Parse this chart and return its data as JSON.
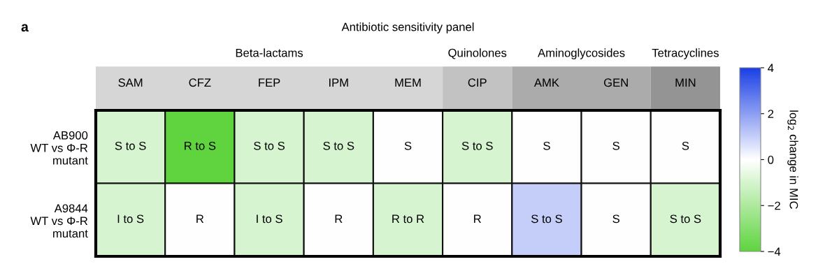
{
  "chart_data": {
    "type": "heatmap",
    "title": "Antibiotic sensitivity panel",
    "categories": [
      "SAM",
      "CFZ",
      "FEP",
      "IPM",
      "MEM",
      "CIP",
      "AMK",
      "GEN",
      "MIN"
    ],
    "y_categories": [
      "AB900\nWT vs Φ-R\nmutant",
      "A9844\nWT vs Φ-R\nmutant"
    ],
    "cells": [
      [
        -1,
        -4,
        -1,
        -1,
        0,
        -1,
        0,
        0,
        0
      ],
      [
        -1,
        0,
        -1,
        0,
        -1,
        0,
        1,
        0,
        -1
      ]
    ],
    "cell_labels": [
      [
        "S to S",
        "R to S",
        "S to S",
        "S to S",
        "S",
        "S to S",
        "S",
        "S",
        "S"
      ],
      [
        "I to S",
        "R",
        "I to S",
        "R",
        "R to R",
        "R",
        "S to S",
        "S",
        "S to S"
      ]
    ],
    "clabel": "log$_{2}$ change in MIC",
    "clim": [
      -4,
      4
    ],
    "cticks": [
      4,
      2,
      0,
      {
        "value": -2,
        "label": "−2"
      },
      {
        "value": -4,
        "label": "−4"
      }
    ],
    "annotations": [
      "a",
      "Beta-lactams",
      "Quinolones",
      "Aminoglycosides",
      "Tetracyclines"
    ]
  }
}
